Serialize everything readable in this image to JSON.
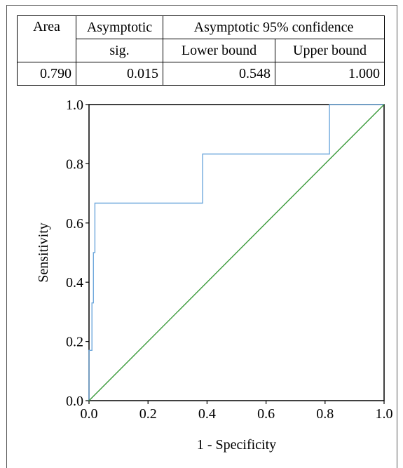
{
  "table": {
    "headers": {
      "area": "Area",
      "asymptotic_sig_line1": "Asymptotic",
      "asymptotic_sig_line2": "sig.",
      "ci_group": "Asymptotic 95% confidence",
      "lower": "Lower bound",
      "upper": "Upper bound"
    },
    "row": {
      "area": "0.790",
      "sig": "0.015",
      "lower": "0.548",
      "upper": "1.000"
    }
  },
  "chart_data": {
    "type": "line",
    "xlabel": "1 - Specificity",
    "ylabel": "Sensitivity",
    "xlim": [
      0,
      1
    ],
    "ylim": [
      0,
      1
    ],
    "xticks": [
      "0.0",
      "0.2",
      "0.4",
      "0.6",
      "0.8",
      "1.0"
    ],
    "yticks": [
      "0.0",
      "0.2",
      "0.4",
      "0.6",
      "0.8",
      "1.0"
    ],
    "grid": false,
    "series": [
      {
        "color": "#6fa8dc",
        "x": [
          0,
          0,
          0.01,
          0.01,
          0.015,
          0.015,
          0.02,
          0.02,
          0.385,
          0.385,
          0.815,
          0.815,
          1.0
        ],
        "y": [
          0,
          0.17,
          0.17,
          0.33,
          0.33,
          0.5,
          0.5,
          0.667,
          0.667,
          0.833,
          0.833,
          1.0,
          1.0
        ]
      },
      {
        "color": "#3a9a3a",
        "x": [
          0,
          1
        ],
        "y": [
          0,
          1
        ]
      }
    ]
  }
}
